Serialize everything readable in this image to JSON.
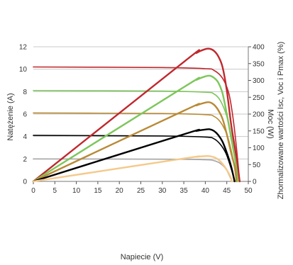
{
  "chart_data": {
    "type": "line",
    "xlabel": "Napiecie (V)",
    "ylabel_left": "Natężenie (A)",
    "ylabel_right_outer": "Zhormalizowane wartości Isc, Voc i Pmax (%)",
    "ylabel_right_inner": "Moc (W)",
    "xlim": [
      0,
      50
    ],
    "ylim_left": [
      0,
      12
    ],
    "ylim_right": [
      0,
      400
    ],
    "x_ticks": [
      "0",
      "5",
      "10",
      "15",
      "20",
      "25",
      "30",
      "35",
      "40",
      "45",
      "50"
    ],
    "y_left_ticks": [
      "0",
      "2",
      "4",
      "6",
      "8",
      "10",
      "12"
    ],
    "y_right_ticks": [
      "0",
      "50",
      "100",
      "150",
      "200",
      "250",
      "300",
      "350",
      "400"
    ],
    "grid": "horizontal",
    "iv_series": [
      {
        "color": "#c0282d",
        "axis": "left",
        "points": [
          [
            0,
            10.2
          ],
          [
            30,
            10.15
          ],
          [
            40,
            10.05
          ],
          [
            42,
            9.9
          ],
          [
            44,
            9.2
          ],
          [
            45.5,
            7.8
          ],
          [
            46.5,
            5.5
          ],
          [
            47.3,
            2.8
          ],
          [
            48,
            0
          ]
        ]
      },
      {
        "color": "#7dc65b",
        "axis": "left",
        "points": [
          [
            0,
            8.1
          ],
          [
            30,
            8.05
          ],
          [
            40,
            7.95
          ],
          [
            42,
            7.8
          ],
          [
            43.5,
            7.2
          ],
          [
            45,
            5.8
          ],
          [
            46.2,
            3.8
          ],
          [
            47,
            1.8
          ],
          [
            47.6,
            0
          ]
        ]
      },
      {
        "color": "#b88a35",
        "axis": "left",
        "points": [
          [
            0,
            6.1
          ],
          [
            30,
            6.05
          ],
          [
            40,
            5.95
          ],
          [
            42,
            5.8
          ],
          [
            43.5,
            5.3
          ],
          [
            45,
            4.2
          ],
          [
            46,
            2.8
          ],
          [
            46.8,
            1.2
          ],
          [
            47.2,
            0
          ]
        ]
      },
      {
        "color": "#000000",
        "axis": "left",
        "points": [
          [
            0,
            4.1
          ],
          [
            30,
            4.05
          ],
          [
            40,
            3.95
          ],
          [
            42,
            3.8
          ],
          [
            43.5,
            3.3
          ],
          [
            44.8,
            2.5
          ],
          [
            45.8,
            1.4
          ],
          [
            46.5,
            0.5
          ],
          [
            46.8,
            0
          ]
        ]
      },
      {
        "color": "#a6a6a6",
        "axis": "left",
        "points": [
          [
            0,
            2.0
          ],
          [
            30,
            1.98
          ],
          [
            40,
            1.93
          ],
          [
            42,
            1.85
          ],
          [
            43.5,
            1.6
          ],
          [
            44.8,
            1.1
          ],
          [
            45.6,
            0.5
          ],
          [
            46.2,
            0
          ]
        ]
      }
    ],
    "pv_series": [
      {
        "color": "#c0282d",
        "axis": "right",
        "points": [
          [
            0,
            0
          ],
          [
            35,
            355
          ],
          [
            38,
            382
          ],
          [
            40,
            393
          ],
          [
            41,
            394
          ],
          [
            42,
            388
          ],
          [
            43,
            372
          ],
          [
            44,
            340
          ],
          [
            45,
            270
          ],
          [
            46,
            170
          ],
          [
            47,
            90
          ],
          [
            48,
            0
          ]
        ]
      },
      {
        "color": "#7dc65b",
        "axis": "right",
        "points": [
          [
            0,
            0
          ],
          [
            35,
            280
          ],
          [
            38,
            302
          ],
          [
            40,
            312
          ],
          [
            41,
            314
          ],
          [
            42,
            308
          ],
          [
            43,
            294
          ],
          [
            44,
            262
          ],
          [
            45,
            200
          ],
          [
            46,
            130
          ],
          [
            47,
            60
          ],
          [
            47.6,
            0
          ]
        ]
      },
      {
        "color": "#b88a35",
        "axis": "right",
        "points": [
          [
            0,
            0
          ],
          [
            35,
            210
          ],
          [
            38,
            226
          ],
          [
            40,
            234
          ],
          [
            41,
            235
          ],
          [
            42,
            228
          ],
          [
            43,
            212
          ],
          [
            44,
            186
          ],
          [
            45,
            140
          ],
          [
            46,
            85
          ],
          [
            47,
            35
          ],
          [
            47.2,
            0
          ]
        ]
      },
      {
        "color": "#000000",
        "axis": "right",
        "points": [
          [
            0,
            0
          ],
          [
            35,
            140
          ],
          [
            38,
            150
          ],
          [
            40,
            154
          ],
          [
            41,
            155
          ],
          [
            42,
            150
          ],
          [
            43,
            138
          ],
          [
            44,
            118
          ],
          [
            45,
            85
          ],
          [
            46,
            45
          ],
          [
            46.8,
            0
          ]
        ]
      },
      {
        "color": "#f4c98a",
        "axis": "right",
        "points": [
          [
            0,
            0
          ],
          [
            35,
            68
          ],
          [
            38,
            73
          ],
          [
            40,
            75
          ],
          [
            41,
            75
          ],
          [
            42,
            72
          ],
          [
            43,
            65
          ],
          [
            44,
            52
          ],
          [
            45,
            34
          ],
          [
            45.8,
            15
          ],
          [
            46.2,
            0
          ]
        ]
      }
    ]
  }
}
